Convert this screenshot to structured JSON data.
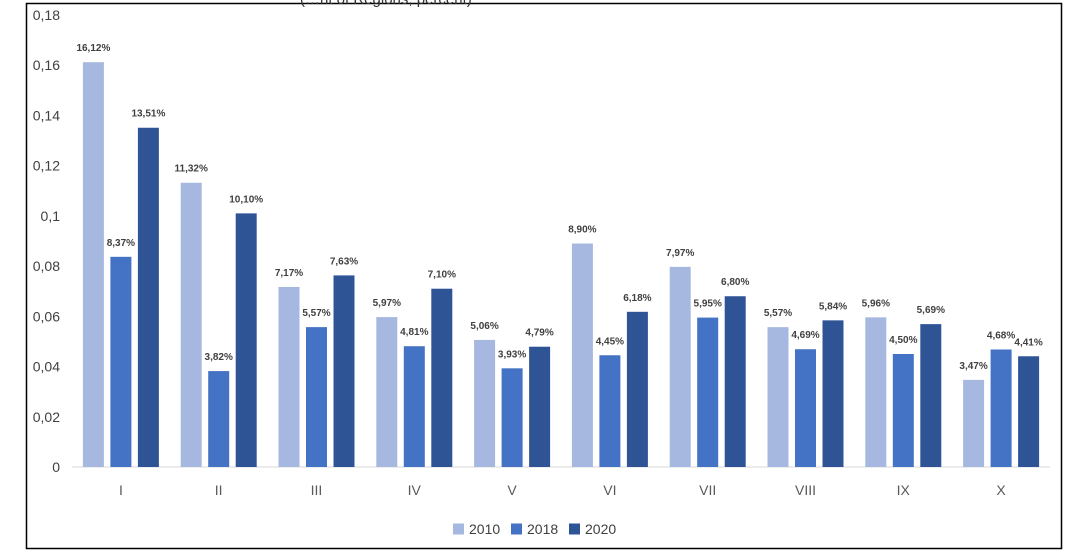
{
  "chart_data": {
    "type": "bar",
    "title": "(…nt of Regions, percent)",
    "xlabel": "",
    "ylabel": "",
    "ylim": [
      0,
      0.18
    ],
    "yticks": [
      "0",
      "0,02",
      "0,04",
      "0,06",
      "0,08",
      "0,1",
      "0,12",
      "0,14",
      "0,16",
      "0,18"
    ],
    "grid": false,
    "legend_position": "bottom",
    "categories": [
      "I",
      "II",
      "III",
      "IV",
      "V",
      "VI",
      "VII",
      "VIII",
      "IX",
      "X"
    ],
    "series": [
      {
        "name": "2010",
        "color": "#a6b8e0",
        "values": [
          0.1612,
          0.1132,
          0.0717,
          0.0597,
          0.0506,
          0.089,
          0.0797,
          0.0557,
          0.0596,
          0.0347
        ],
        "labels": [
          "16,12%",
          "11,32%",
          "7,17%",
          "5,97%",
          "5,06%",
          "8,90%",
          "7,97%",
          "5,57%",
          "5,96%",
          "3,47%"
        ]
      },
      {
        "name": "2018",
        "color": "#4472c4",
        "values": [
          0.0837,
          0.0382,
          0.0557,
          0.0481,
          0.0393,
          0.0445,
          0.0595,
          0.0469,
          0.045,
          0.0468
        ],
        "labels": [
          "8,37%",
          "3,82%",
          "5,57%",
          "4,81%",
          "3,93%",
          "4,45%",
          "5,95%",
          "4,69%",
          "4,50%",
          "4,68%"
        ]
      },
      {
        "name": "2020",
        "color": "#2f5496",
        "values": [
          0.1351,
          0.101,
          0.0763,
          0.071,
          0.0479,
          0.0618,
          0.068,
          0.0584,
          0.0569,
          0.0441
        ],
        "labels": [
          "13,51%",
          "10,10%",
          "7,63%",
          "7,10%",
          "4,79%",
          "6,18%",
          "6,80%",
          "5,84%",
          "5,69%",
          "4,41%"
        ]
      }
    ]
  }
}
